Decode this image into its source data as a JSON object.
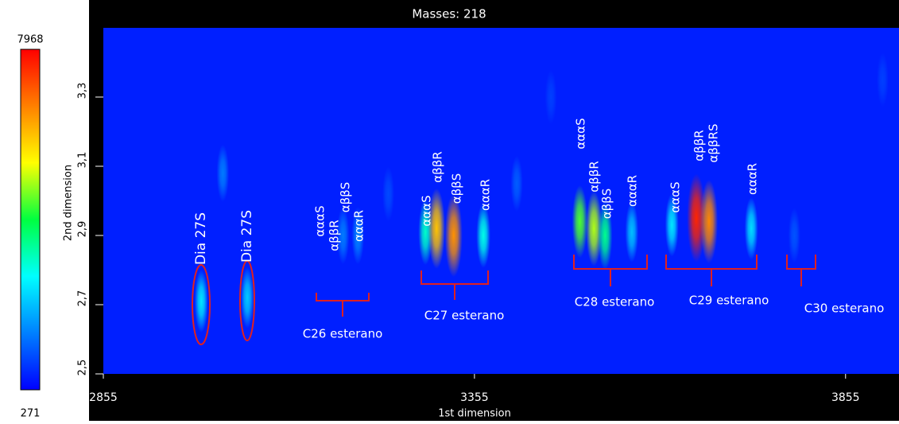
{
  "chart_data": {
    "type": "contour",
    "title": "Masses: 218",
    "xlabel": "1st dimension",
    "ylabel": "2nd dimension",
    "xlim": [
      2855,
      3927
    ],
    "xticks": [
      2855,
      3355,
      3855
    ],
    "ylim": [
      2.5,
      3.5
    ],
    "yticks": [
      {
        "value": 2.5,
        "label": "2,5"
      },
      {
        "value": 2.7,
        "label": "2,7"
      },
      {
        "value": 2.9,
        "label": "2,9"
      },
      {
        "value": 3.1,
        "label": "3,1"
      },
      {
        "value": 3.3,
        "label": "3,3"
      }
    ],
    "zlim": [
      271,
      7968
    ],
    "colormap": [
      "#0000ff",
      "#0080ff",
      "#00ffff",
      "#00ff40",
      "#ffff00",
      "#ff8000",
      "#ff0000"
    ],
    "x": [
      2987,
      3049,
      3178,
      3198,
      3289,
      3304,
      3327,
      3367,
      3497,
      3516,
      3531,
      3567,
      3621,
      3654,
      3671,
      3728,
      3786,
      3016,
      3239,
      3412,
      3458,
      3905
    ],
    "y": [
      2.71,
      2.72,
      2.9,
      2.9,
      2.91,
      2.92,
      2.9,
      2.9,
      2.94,
      2.92,
      2.9,
      2.91,
      2.93,
      2.95,
      2.94,
      2.92,
      2.9,
      3.08,
      3.02,
      3.05,
      3.3,
      3.35
    ],
    "z": [
      2600,
      2300,
      1500,
      1600,
      3200,
      6000,
      6500,
      3000,
      4500,
      5000,
      3600,
      2200,
      2600,
      7600,
      6600,
      2500,
      1100,
      1500,
      1000,
      1200,
      900,
      900
    ],
    "peak_labels": [
      "Dia 27S",
      "Dia 27S",
      "αααS",
      "αββR",
      "αββS",
      "αααR",
      "αααS",
      "αββR",
      "αββS",
      "αααR",
      "αααS",
      "αββR",
      "αββS",
      "αααR",
      "αααS",
      "αββR",
      "αββRS",
      "αααR"
    ],
    "group_labels": [
      "C26 esterano",
      "C27 esterano",
      "C28 esterano",
      "C29 esterano",
      "C30 esterano"
    ]
  }
}
